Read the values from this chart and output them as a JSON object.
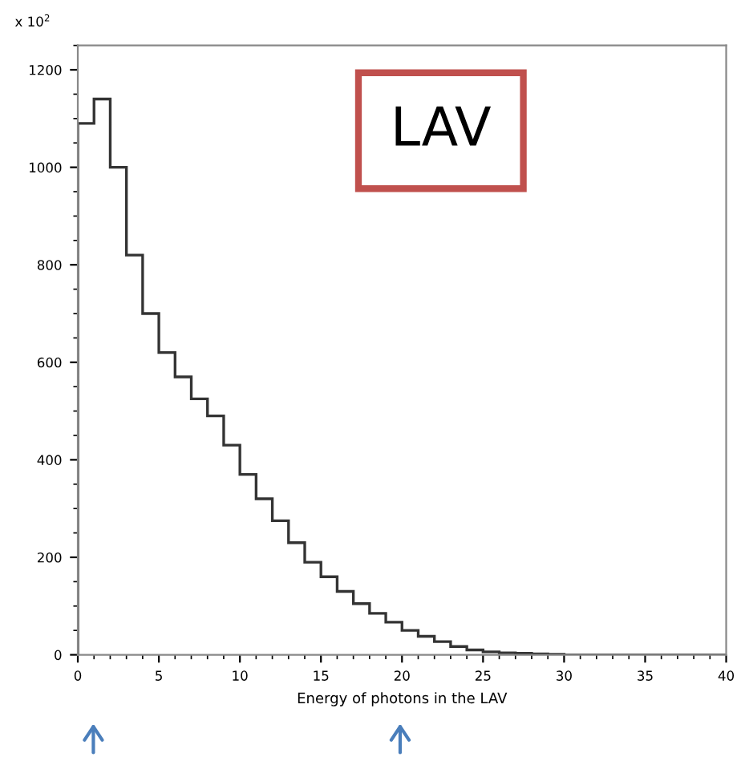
{
  "chart_data": {
    "type": "histogram",
    "xlabel": "Energy of photons in the LAV",
    "annotations": [
      "x 10$^{2}$",
      "LAV"
    ],
    "bins": [
      0,
      1,
      2,
      3,
      4,
      5,
      6,
      7,
      8,
      9,
      10,
      11,
      12,
      13,
      14,
      15,
      16,
      17,
      18,
      19,
      20,
      21,
      22,
      23,
      24,
      25,
      26,
      27,
      28,
      29,
      30,
      31,
      32,
      33,
      34,
      35,
      36,
      37,
      38,
      39,
      40
    ],
    "values": [
      1090,
      1140,
      1000,
      820,
      700,
      620,
      570,
      525,
      490,
      430,
      370,
      320,
      275,
      230,
      190,
      160,
      130,
      105,
      85,
      67,
      50,
      38,
      27,
      17,
      10,
      6,
      4,
      3,
      2,
      1,
      0,
      0,
      0,
      0,
      0,
      0,
      0,
      0,
      0,
      0
    ],
    "color": "#333333",
    "xlim": [
      0,
      40
    ],
    "ylim": [
      0,
      1250
    ],
    "xticks": [
      0,
      5,
      10,
      15,
      20,
      25,
      30,
      35,
      40
    ],
    "yticks": [
      0,
      200,
      400,
      600,
      800,
      1000,
      1200
    ],
    "grid": false
  }
}
